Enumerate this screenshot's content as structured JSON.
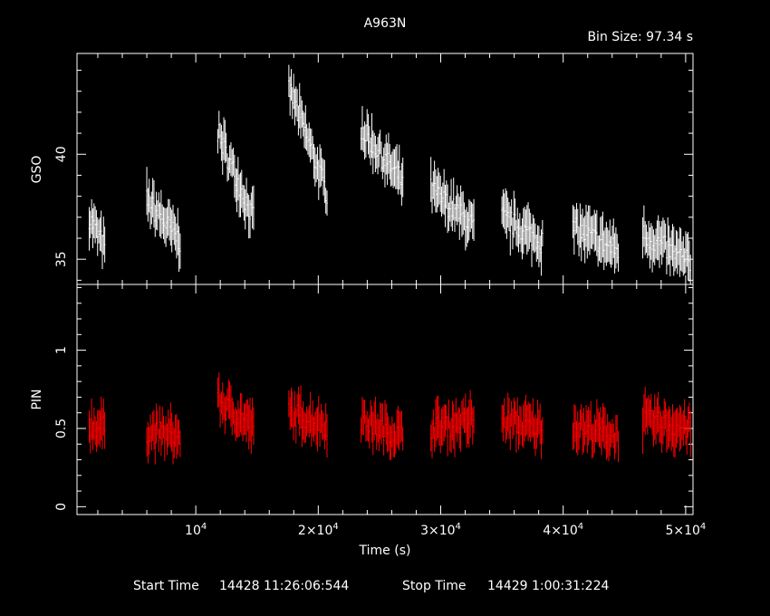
{
  "title": "A963N",
  "bin_size": "Bin Size: 97.34 s",
  "x_axis": {
    "label": "Time (s)",
    "tick_labels": [
      {
        "value": 10000,
        "base": "10",
        "exp": "4"
      },
      {
        "value": 20000,
        "base": "2×10",
        "exp": "4"
      },
      {
        "value": 30000,
        "base": "3×10",
        "exp": "4"
      },
      {
        "value": 40000,
        "base": "4×10",
        "exp": "4"
      },
      {
        "value": 50000,
        "base": "5×10",
        "exp": "4"
      }
    ]
  },
  "footer": {
    "start_label": "Start Time",
    "start_value": "14428 11:26:06:544",
    "stop_label": "Stop Time",
    "stop_value": "14429  1:00:31:224"
  },
  "chart_data": [
    {
      "type": "scatter",
      "panel": "top",
      "ylabel": "GSO",
      "ylim": [
        33.8,
        44.8
      ],
      "xlim": [
        300,
        50600
      ],
      "y_ticks": [
        35,
        40
      ],
      "color": "#ffffff",
      "segments": [
        {
          "x": [
            1300,
            2600
          ],
          "y": [
            37.0,
            35.5
          ],
          "err": 0.9
        },
        {
          "x": [
            6000,
            8800
          ],
          "y": [
            37.8,
            35.8
          ],
          "err": 1.0
        },
        {
          "x": [
            11800,
            14800
          ],
          "y": [
            41.0,
            36.8
          ],
          "err": 0.9
        },
        {
          "x": [
            17600,
            20800
          ],
          "y": [
            43.2,
            38.0
          ],
          "err": 0.9
        },
        {
          "x": [
            23500,
            27000
          ],
          "y": [
            41.2,
            38.6
          ],
          "err": 0.9
        },
        {
          "x": [
            29200,
            32800
          ],
          "y": [
            38.3,
            36.5
          ],
          "err": 1.0
        },
        {
          "x": [
            35000,
            38400
          ],
          "y": [
            37.0,
            35.8
          ],
          "err": 1.0
        },
        {
          "x": [
            40800,
            44500
          ],
          "y": [
            36.5,
            35.4
          ],
          "err": 1.0
        },
        {
          "x": [
            46500,
            50400
          ],
          "y": [
            36.2,
            34.8
          ],
          "err": 1.0
        }
      ]
    },
    {
      "type": "scatter",
      "panel": "bottom",
      "ylabel": "PIN",
      "ylim": [
        -0.05,
        1.42
      ],
      "xlim": [
        300,
        50600
      ],
      "y_ticks": [
        0,
        0.5,
        1
      ],
      "y_tick_labels": [
        "0",
        "0.5",
        "1"
      ],
      "color": "#ff0000",
      "segments": [
        {
          "x": [
            1300,
            2600
          ],
          "y": [
            0.52,
            0.5
          ],
          "err": 0.12
        },
        {
          "x": [
            6000,
            8800
          ],
          "y": [
            0.48,
            0.45
          ],
          "err": 0.12
        },
        {
          "x": [
            11800,
            14800
          ],
          "y": [
            0.68,
            0.5
          ],
          "err": 0.12
        },
        {
          "x": [
            17600,
            20800
          ],
          "y": [
            0.6,
            0.52
          ],
          "err": 0.12
        },
        {
          "x": [
            23500,
            27000
          ],
          "y": [
            0.55,
            0.45
          ],
          "err": 0.12
        },
        {
          "x": [
            29200,
            32800
          ],
          "y": [
            0.5,
            0.55
          ],
          "err": 0.13
        },
        {
          "x": [
            35000,
            38400
          ],
          "y": [
            0.55,
            0.5
          ],
          "err": 0.12
        },
        {
          "x": [
            40800,
            44500
          ],
          "y": [
            0.52,
            0.45
          ],
          "err": 0.12
        },
        {
          "x": [
            46500,
            50400
          ],
          "y": [
            0.55,
            0.5
          ],
          "err": 0.13
        }
      ]
    }
  ]
}
